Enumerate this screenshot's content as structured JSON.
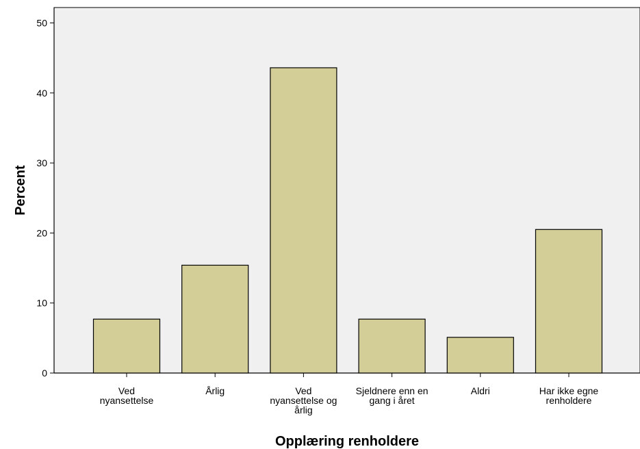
{
  "chart_data": {
    "type": "bar",
    "xlabel": "Opplæring renholdere",
    "ylabel": "Percent",
    "categories": [
      "Ved nyansettelse",
      "Årlig",
      "Ved nyansettelse og årlig",
      "Sjeldnere enn en gang i året",
      "Aldri",
      "Har ikke egne renholdere"
    ],
    "category_label_lines": [
      [
        "Ved",
        "nyansettelse"
      ],
      [
        "Årlig"
      ],
      [
        "Ved",
        "nyansettelse og",
        "årlig"
      ],
      [
        "Sjeldnere enn en",
        "gang i året"
      ],
      [
        "Aldri"
      ],
      [
        "Har ikke egne",
        "renholdere"
      ]
    ],
    "values": [
      7.7,
      15.4,
      43.6,
      7.7,
      5.1,
      20.5
    ],
    "ylim": [
      0,
      52.2
    ],
    "yticks": [
      0,
      10,
      20,
      30,
      40,
      50
    ],
    "grid": false,
    "legend": "none",
    "colors": {
      "bar_fill": "#d3ce97",
      "bar_stroke": "#000000",
      "plot_background": "#f0f0f0",
      "page_background": "#ffffff"
    }
  }
}
